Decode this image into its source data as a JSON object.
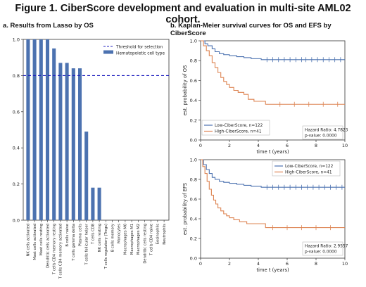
{
  "figure_title": "Figure 1. CiberScore development and evaluation in multi-site AML02 cohort.",
  "panel_a_title": "a. Results from Lasso by OS",
  "panel_b_title": "b. Kaplan-Meier survival curves for OS and EFS by CiberScore",
  "chart_data": [
    {
      "type": "bar",
      "categories": [
        "NK cells activated",
        "Mast cells activated",
        "Mast cells resting",
        "Dendritic cells activated",
        "T cells CD4 memory resting",
        "T cells CD4 memory activated",
        "B cells naive",
        "T cells gamma delta",
        "Plasma cells",
        "T cells follicular helper",
        "T cells CD8",
        "NK cells resting",
        "T cells regulatory (Tregs)",
        "B cells memory",
        "Monocytes",
        "Macrophages M0",
        "Macrophages M1",
        "Macrophages M2",
        "Dendritic cells resting",
        "T cells CD4 naive",
        "Eosinophils",
        "Neutrophils"
      ],
      "values": [
        1.0,
        1.0,
        1.0,
        1.0,
        0.95,
        0.87,
        0.87,
        0.84,
        0.84,
        0.49,
        0.18,
        0.18,
        0,
        0,
        0,
        0,
        0,
        0,
        0,
        0,
        0,
        0
      ],
      "threshold": 0.8,
      "ylim": [
        0,
        1.0
      ],
      "yticks": [
        "0.0",
        "0.2",
        "0.4",
        "0.6",
        "0.8",
        "1.0"
      ],
      "legend": [
        "Threshold for selection",
        "Hematopoietic cell type"
      ],
      "legend_position": "top-right",
      "colors": {
        "bar": "#4c72b0",
        "threshold": "#1f1fbf"
      }
    },
    {
      "type": "line",
      "subtype": "kaplan-meier",
      "ylabel": "est. probability of OS",
      "xlabel": "time t (years)",
      "xlim": [
        0,
        10
      ],
      "ylim": [
        0,
        1.0
      ],
      "xticks": [
        "0",
        "2",
        "4",
        "6",
        "8",
        "10"
      ],
      "yticks": [
        "0.0",
        "0.2",
        "0.4",
        "0.6",
        "0.8",
        "1.0"
      ],
      "legend_position": "lower-left",
      "series": [
        {
          "name": "Low-CiberScore, n=122",
          "color": "#4c72b0",
          "x": [
            0,
            0.3,
            0.5,
            0.8,
            1.0,
            1.3,
            1.6,
            2.0,
            2.5,
            3.0,
            3.5,
            4.2,
            10
          ],
          "y": [
            1.0,
            0.97,
            0.95,
            0.92,
            0.89,
            0.87,
            0.86,
            0.85,
            0.84,
            0.83,
            0.82,
            0.81,
            0.81
          ],
          "censor": [
            4.6,
            5.0,
            5.4,
            5.8,
            6.2,
            6.6,
            7.0,
            7.3,
            7.7,
            8.1,
            8.5,
            8.9,
            9.3,
            9.7
          ]
        },
        {
          "name": "High-CiberScore, n=41",
          "color": "#dd8452",
          "x": [
            0,
            0.2,
            0.4,
            0.6,
            0.8,
            1.0,
            1.2,
            1.4,
            1.6,
            1.8,
            2.0,
            2.3,
            2.6,
            3.0,
            3.3,
            3.7,
            4.5,
            10
          ],
          "y": [
            1.0,
            0.95,
            0.9,
            0.85,
            0.78,
            0.73,
            0.68,
            0.63,
            0.59,
            0.56,
            0.53,
            0.5,
            0.48,
            0.46,
            0.41,
            0.39,
            0.36,
            0.36
          ],
          "censor": [
            5.5,
            6.5,
            7.5,
            8.5,
            9.5
          ]
        }
      ],
      "annotation": [
        "Hazard Ratio: 4.7823",
        "p-value: 0.0000"
      ]
    },
    {
      "type": "line",
      "subtype": "kaplan-meier",
      "ylabel": "est. probability of EFS",
      "xlabel": "time t (years)",
      "xlim": [
        0,
        10
      ],
      "ylim": [
        0,
        1.0
      ],
      "xticks": [
        "0",
        "2",
        "4",
        "6",
        "8",
        "10"
      ],
      "yticks": [
        "0.0",
        "0.2",
        "0.4",
        "0.6",
        "0.8",
        "1.0"
      ],
      "legend_position": "top-right",
      "series": [
        {
          "name": "Low-CiberScore, n=122",
          "color": "#4c72b0",
          "x": [
            0,
            0.2,
            0.4,
            0.6,
            0.8,
            1.0,
            1.3,
            1.6,
            2.0,
            2.5,
            3.0,
            3.5,
            4.2,
            10
          ],
          "y": [
            1.0,
            0.95,
            0.9,
            0.86,
            0.82,
            0.8,
            0.78,
            0.77,
            0.76,
            0.75,
            0.74,
            0.73,
            0.72,
            0.72
          ],
          "censor": [
            4.6,
            5.0,
            5.4,
            5.8,
            6.2,
            6.6,
            7.0,
            7.4,
            7.8,
            8.2,
            8.6,
            9.0,
            9.4,
            9.8
          ]
        },
        {
          "name": "High-CiberScore, n=41",
          "color": "#dd8452",
          "x": [
            0,
            0.15,
            0.3,
            0.45,
            0.6,
            0.75,
            0.9,
            1.05,
            1.2,
            1.4,
            1.6,
            1.8,
            2.0,
            2.3,
            2.7,
            3.2,
            4.5,
            10
          ],
          "y": [
            1.0,
            0.93,
            0.86,
            0.78,
            0.7,
            0.64,
            0.59,
            0.55,
            0.51,
            0.48,
            0.45,
            0.43,
            0.41,
            0.39,
            0.37,
            0.35,
            0.31,
            0.31
          ],
          "censor": [
            5.0,
            6.0,
            7.0,
            8.0,
            9.0
          ]
        }
      ],
      "annotation": [
        "Hazard Ratio: 2.9557",
        "p-value: 0.0000"
      ]
    }
  ]
}
